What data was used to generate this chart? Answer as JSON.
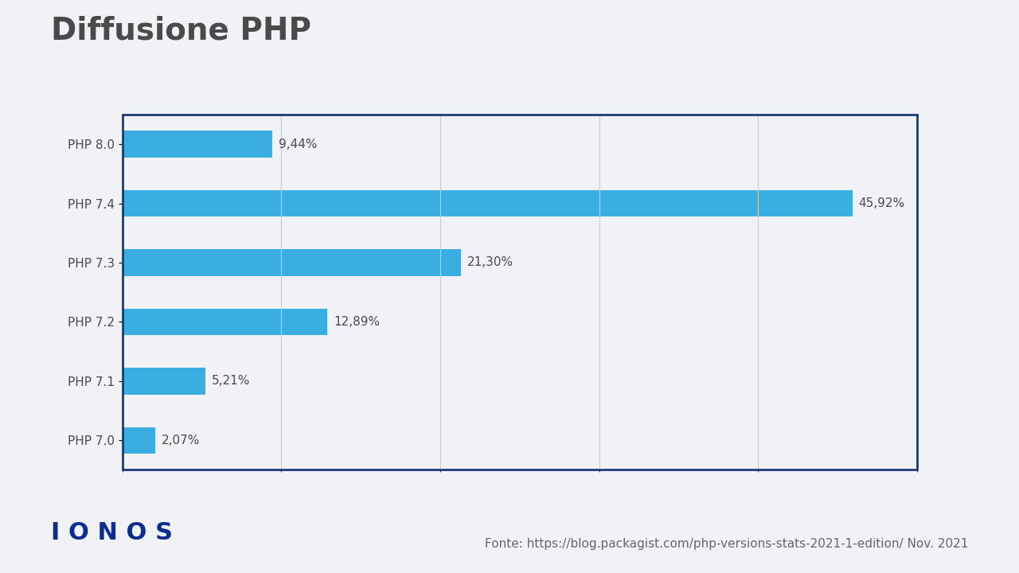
{
  "title": "Diffusione PHP",
  "categories": [
    "PHP 8.0",
    "PHP 7.4",
    "PHP 7.3",
    "PHP 7.2",
    "PHP 7.1",
    "PHP 7.0"
  ],
  "values": [
    9.44,
    45.92,
    21.3,
    12.89,
    5.21,
    2.07
  ],
  "labels": [
    "9,44%",
    "45,92%",
    "21,30%",
    "12,89%",
    "5,21%",
    "2,07%"
  ],
  "bar_color": "#3aaee0",
  "background_color": "#f0f2f5",
  "plot_bg_color": "#f0f2f5",
  "border_color": "#1a3a7a",
  "title_color": "#4a4a4a",
  "label_color": "#4a4a4a",
  "tick_color": "#4a4a4a",
  "footer_text": "Fonte: https://blog.packagist.com/php-versions-stats-2021-1-edition/ Nov. 2021",
  "footer_color": "#666666",
  "ionos_text": "I O N O S",
  "ionos_color": "#0d2d8e",
  "xlim": [
    0,
    50
  ],
  "title_fontsize": 28,
  "bar_label_fontsize": 11,
  "tick_fontsize": 11,
  "footer_fontsize": 11,
  "ionos_fontsize": 22
}
